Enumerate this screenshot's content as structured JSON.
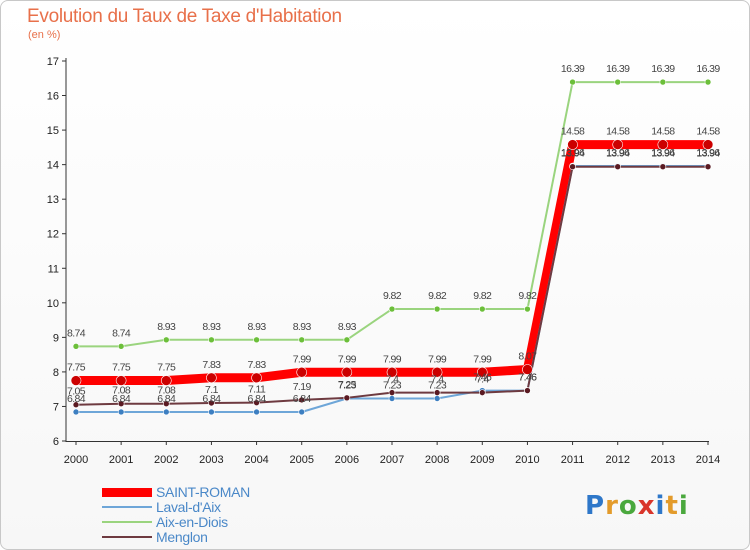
{
  "header": {
    "title": "Evolution du Taux de Taxe d'Habitation",
    "unit": "(en %)"
  },
  "logo": {
    "text": "Proxiti",
    "letters": [
      "P",
      "r",
      "o",
      "x",
      "i",
      "t",
      "i"
    ],
    "colors": [
      "#2e77c9",
      "#e39b2b",
      "#4aa83d",
      "#d9352b",
      "#2e77c9",
      "#e39b2b",
      "#4aa83d"
    ]
  },
  "chart_data": {
    "type": "line",
    "title": "Evolution du Taux de Taxe d'Habitation",
    "ylabel": "(en %)",
    "xlabel": "",
    "x": [
      "2000",
      "2001",
      "2002",
      "2003",
      "2004",
      "2005",
      "2006",
      "2007",
      "2008",
      "2009",
      "2010",
      "2011",
      "2012",
      "2013",
      "2014"
    ],
    "ylim": [
      6,
      17
    ],
    "yticks": [
      "6",
      "7",
      "8",
      "9",
      "10",
      "11",
      "12",
      "13",
      "14",
      "15",
      "16",
      "17"
    ],
    "grid": false,
    "legend": "bottom-left",
    "series": [
      {
        "name": "SAINT-ROMAN",
        "color": "#ff0000",
        "dot": "#cc0000",
        "values": [
          7.75,
          7.75,
          7.75,
          7.83,
          7.83,
          7.99,
          7.99,
          7.99,
          7.99,
          7.99,
          8.07,
          14.58,
          14.58,
          14.58,
          14.58
        ],
        "labels": [
          "7.75",
          "7.75",
          "7.75",
          "7.83",
          "7.83",
          "7.99",
          "7.99",
          "7.99",
          "7.99",
          "7.99",
          "8.07",
          "14.58",
          "14.58",
          "14.58",
          "14.58"
        ]
      },
      {
        "name": "Laval-d'Aix",
        "color": "#6ea6d8",
        "dot": "#3d7fc1",
        "values": [
          6.84,
          6.84,
          6.84,
          6.84,
          6.84,
          6.84,
          7.23,
          7.23,
          7.23,
          7.46,
          7.46,
          13.96,
          13.96,
          13.96,
          13.96
        ],
        "labels": [
          "6.84",
          "6.84",
          "6.84",
          "6.84",
          "6.84",
          "6.84",
          "7.23",
          "7.23",
          "7.23",
          "7.46",
          "7.46",
          "13.96",
          "13.96",
          "13.96",
          "13.96"
        ]
      },
      {
        "name": "Aix-en-Diois",
        "color": "#9ad47e",
        "dot": "#6cbf3a",
        "values": [
          8.74,
          8.74,
          8.93,
          8.93,
          8.93,
          8.93,
          8.93,
          9.82,
          9.82,
          9.82,
          9.82,
          16.39,
          16.39,
          16.39,
          16.39
        ],
        "labels": [
          "8.74",
          "8.74",
          "8.93",
          "8.93",
          "8.93",
          "8.93",
          "8.93",
          "9.82",
          "9.82",
          "9.82",
          "9.82",
          "16.39",
          "16.39",
          "16.39",
          "16.39"
        ]
      },
      {
        "name": "Menglon",
        "color": "#6e3a40",
        "dot": "#5a1a22",
        "values": [
          7.05,
          7.08,
          7.08,
          7.1,
          7.11,
          7.19,
          7.25,
          7.4,
          7.4,
          7.4,
          7.46,
          13.94,
          13.94,
          13.94,
          13.94
        ],
        "labels": [
          "7.05",
          "7.08",
          "7.08",
          "7.1",
          "7.11",
          "7.19",
          "7.25",
          "7.4",
          "7.4",
          "7.4",
          "7.46",
          "13.94",
          "13.94",
          "13.94",
          "13.94"
        ]
      }
    ]
  }
}
